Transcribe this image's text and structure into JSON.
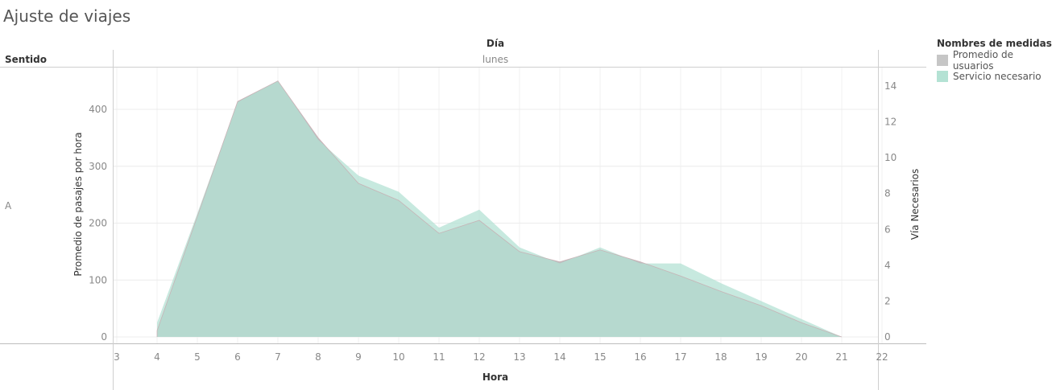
{
  "title": "Ajuste de viajes",
  "column_header": "Día",
  "column_value": "lunes",
  "row_header": "Sentido",
  "row_value": "A",
  "legend": {
    "title": "Nombres de medidas",
    "items": [
      {
        "label": "Promedio de usuarios",
        "color": "#c6c6c6"
      },
      {
        "label": "Servicio necesario",
        "color": "#b4e2d4"
      }
    ]
  },
  "chart_data": {
    "type": "area",
    "xlabel": "Hora",
    "ylabel": "Promedio de pasajes por hora",
    "y2label": "Vía Necesarios",
    "xlim": [
      3,
      22
    ],
    "ylim": [
      0,
      460
    ],
    "y2lim": [
      0,
      15
    ],
    "x_ticks": [
      3,
      4,
      5,
      6,
      7,
      8,
      9,
      10,
      11,
      12,
      13,
      14,
      15,
      16,
      17,
      18,
      19,
      20,
      21,
      22
    ],
    "y_ticks": [
      0,
      100,
      200,
      300,
      400
    ],
    "y2_ticks": [
      0,
      2,
      4,
      6,
      8,
      10,
      12,
      14
    ],
    "grid": true,
    "series": [
      {
        "name": "Promedio de usuarios",
        "axis": "left",
        "color": "#b9bcbd",
        "x": [
          4,
          4,
          5,
          6,
          7,
          8,
          9,
          10,
          11,
          12,
          13,
          14,
          15,
          16,
          17,
          18,
          19,
          20,
          21
        ],
        "values": [
          0,
          11,
          212,
          414,
          450,
          350,
          270,
          240,
          182,
          205,
          150,
          132,
          153,
          132,
          107,
          80,
          55,
          25,
          0
        ]
      },
      {
        "name": "Servicio necesario",
        "axis": "right",
        "color": "#b4e2d4",
        "x": [
          4,
          4,
          5,
          6,
          7,
          8,
          9,
          10,
          11,
          12,
          13,
          14,
          15,
          16,
          17,
          18,
          19,
          20,
          21
        ],
        "values": [
          0,
          0.8,
          6.9,
          13.1,
          14.3,
          11.0,
          9.0,
          8.1,
          6.1,
          7.1,
          5.0,
          4.1,
          5.0,
          4.1,
          4.1,
          3.0,
          2.0,
          1.0,
          0
        ]
      }
    ]
  }
}
